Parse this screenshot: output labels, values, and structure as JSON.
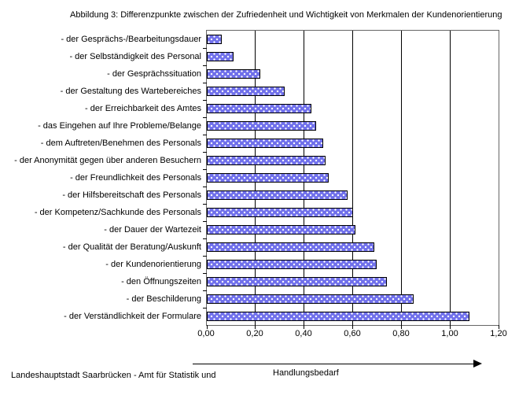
{
  "title": "Abbildung 3: Differenzpunkte zwischen der Zufriedenheit und Wichtigkeit von Merkmalen der Kundenorientierung",
  "footer": "Landeshauptstadt Saarbrücken - Amt für Statistik und",
  "colors": {
    "background": "#ffffff",
    "bar_fill": "#7070eb",
    "bar_dots": "#ffffff",
    "bar_border": "#000000",
    "plot_frame": "#666666",
    "gridline": "#000000",
    "text": "#000000"
  },
  "chart_data": {
    "type": "bar",
    "orientation": "horizontal",
    "title": "Abbildung 3: Differenzpunkte zwischen der Zufriedenheit und Wichtigkeit von Merkmalen der Kundenorientierung",
    "xlabel": "Handlungsbedarf",
    "xlim": [
      0,
      1.2
    ],
    "xtick_labels": [
      "0,00",
      "0,20",
      "0,40",
      "0,60",
      "0,80",
      "1,00",
      "1,20"
    ],
    "xtick_values": [
      0,
      0.2,
      0.4,
      0.6,
      0.8,
      1.0,
      1.2
    ],
    "grid": "vertical-only",
    "legend": "none",
    "categories": [
      "- der Gesprächs-/Bearbeitungsdauer",
      "- der Selbständigkeit des Personal",
      "- der Gesprächssituation",
      "- der Gestaltung des Wartebereiches",
      "- der Erreichbarkeit des Amtes",
      "- das Eingehen auf Ihre Probleme/Belange",
      "- dem Auftreten/Benehmen des Personals",
      "- der Anonymität gegen über anderen Besuchern",
      "- der Freundlichkeit des Personals",
      "- der Hilfsbereitschaft des Personals",
      "- der Kompetenz/Sachkunde des Personals",
      "- der Dauer der Wartezeit",
      "- der Qualität der Beratung/Auskunft",
      "- der Kundenorientierung",
      "- den Öffnungszeiten",
      "- der Beschilderung",
      "- der Verständlichkeit der Formulare"
    ],
    "values": [
      0.06,
      0.11,
      0.22,
      0.32,
      0.43,
      0.45,
      0.48,
      0.49,
      0.5,
      0.58,
      0.6,
      0.61,
      0.69,
      0.7,
      0.74,
      0.85,
      1.08
    ]
  }
}
